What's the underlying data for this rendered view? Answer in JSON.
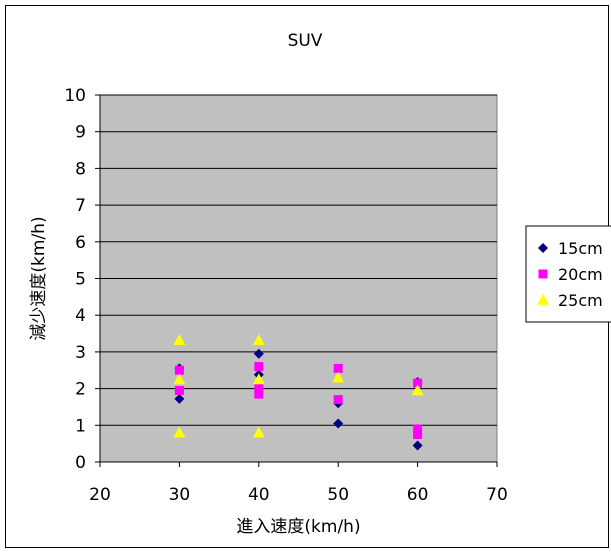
{
  "chart_data": {
    "type": "scatter",
    "title": "SUV",
    "xlabel": "進入速度(km/h)",
    "ylabel": "減少速度(km/h)",
    "xlim": [
      20,
      70
    ],
    "ylim": [
      0,
      10
    ],
    "x_ticks": [
      "20",
      "30",
      "40",
      "50",
      "60",
      "70"
    ],
    "y_ticks": [
      "0",
      "1",
      "2",
      "3",
      "4",
      "5",
      "6",
      "7",
      "8",
      "9",
      "10"
    ],
    "grid": "horizontal",
    "legend_position": "right",
    "plot_background": "#c0c0c0",
    "series": [
      {
        "name": "15cm",
        "marker": "diamond",
        "color": "#000080",
        "points": [
          [
            30,
            2.55
          ],
          [
            30,
            1.72
          ],
          [
            40,
            2.95
          ],
          [
            40,
            2.38
          ],
          [
            50,
            1.6
          ],
          [
            50,
            1.05
          ],
          [
            60,
            2.18
          ],
          [
            60,
            0.45
          ]
        ]
      },
      {
        "name": "20cm",
        "marker": "square",
        "color": "#ff00ff",
        "points": [
          [
            30,
            2.5
          ],
          [
            30,
            1.95
          ],
          [
            40,
            2.6
          ],
          [
            40,
            1.85
          ],
          [
            40,
            2.0
          ],
          [
            50,
            2.55
          ],
          [
            50,
            1.7
          ],
          [
            60,
            2.15
          ],
          [
            60,
            0.9
          ],
          [
            60,
            0.75
          ]
        ]
      },
      {
        "name": "25cm",
        "marker": "triangle",
        "color": "#ffff00",
        "points": [
          [
            30,
            3.32
          ],
          [
            30,
            2.25
          ],
          [
            30,
            0.8
          ],
          [
            40,
            3.32
          ],
          [
            40,
            2.25
          ],
          [
            40,
            0.8
          ],
          [
            50,
            2.3
          ],
          [
            60,
            1.95
          ]
        ]
      }
    ]
  }
}
